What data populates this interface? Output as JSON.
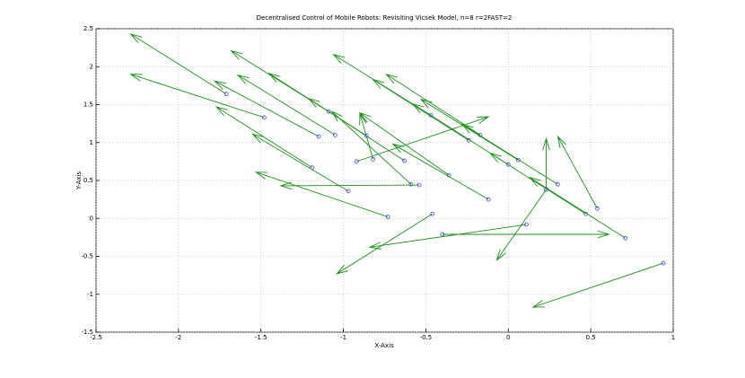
{
  "chart_data": {
    "type": "quiver",
    "title": "Decentralised Control of Mobile Robots: Revisiting Vicsek Model, n=8 r=2FAST=2",
    "xlabel": "X-Axis",
    "ylabel": "Y-Axis",
    "x": [
      -1.71,
      -1.48,
      -1.09,
      -1.15,
      -1.05,
      -1.19,
      -0.97,
      -0.73,
      -0.92,
      -0.82,
      -0.86,
      -0.63,
      -0.59,
      -0.54,
      -0.47,
      -0.46,
      -0.4,
      -0.36,
      -0.24,
      -0.17,
      -0.12,
      0.0,
      0.06,
      0.11,
      0.23,
      0.23,
      0.3,
      0.47,
      0.54,
      0.71,
      0.94
    ],
    "y": [
      1.64,
      1.33,
      1.41,
      1.08,
      1.1,
      0.67,
      0.36,
      0.02,
      0.75,
      0.78,
      1.09,
      0.76,
      0.45,
      0.44,
      1.36,
      0.06,
      -0.21,
      0.57,
      1.03,
      1.1,
      0.25,
      0.71,
      0.77,
      -0.08,
      0.38,
      0.38,
      0.45,
      0.06,
      0.13,
      -0.26,
      -0.59
    ],
    "u": [
      -0.58,
      -0.81,
      -0.59,
      -0.63,
      -0.59,
      -0.58,
      -0.58,
      -0.8,
      0.8,
      -0.08,
      -0.59,
      -0.58,
      -0.48,
      -0.84,
      -0.59,
      -0.58,
      1.01,
      -0.54,
      -0.58,
      -0.57,
      -0.58,
      -0.58,
      -0.59,
      -0.95,
      0,
      -0.3,
      -0.58,
      -0.58,
      -0.24,
      -0.58,
      -0.79
    ],
    "v": [
      0.79,
      0.57,
      0.8,
      0.73,
      0.79,
      0.8,
      0.75,
      0.59,
      0.59,
      0.6,
      0.82,
      0.82,
      0.96,
      -0.01,
      0.8,
      -0.79,
      0,
      0.82,
      0.8,
      0.8,
      0.73,
      0.8,
      0.8,
      -0.3,
      0.67,
      -0.93,
      0.79,
      0.8,
      0.95,
      0.8,
      -0.58
    ],
    "arrow_color": "#1f8f1f",
    "point_color": "#3030e0",
    "xlim": [
      -2.5,
      1
    ],
    "ylim": [
      -1.5,
      2.5
    ],
    "xticks": [
      -2.5,
      -2,
      -1.5,
      -1,
      -0.5,
      0,
      0.5,
      1
    ],
    "yticks": [
      -1.5,
      -1,
      -0.5,
      0,
      0.5,
      1,
      1.5,
      2,
      2.5
    ],
    "grid": true
  }
}
